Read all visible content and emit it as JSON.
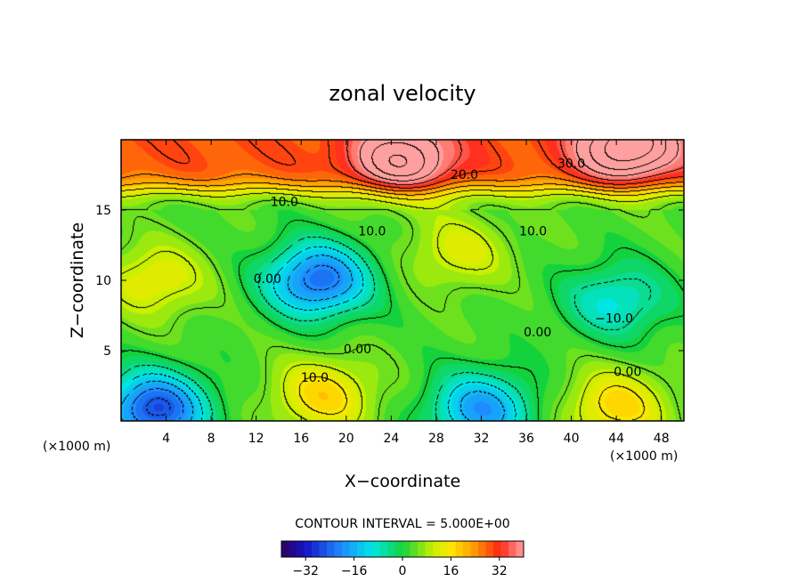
{
  "chart_data": {
    "type": "heatmap",
    "subtype": "filled-contour",
    "title": "zonal velocity",
    "xlabel": "X−coordinate",
    "ylabel": "Z−coordinate",
    "x_units_left": "(×1000 m)",
    "x_units_right": "(×1000 m)",
    "xlim": [
      0,
      50
    ],
    "ylim": [
      0,
      20
    ],
    "x_ticks": [
      4,
      8,
      12,
      16,
      20,
      24,
      28,
      32,
      36,
      40,
      44,
      48
    ],
    "y_ticks": [
      5,
      10,
      15
    ],
    "contour_interval_text": "CONTOUR INTERVAL = 5.000E+00",
    "contour_labels": [
      {
        "text": "30.0",
        "x": 40,
        "z": 18.0
      },
      {
        "text": "20.0",
        "x": 30.5,
        "z": 17.2
      },
      {
        "text": "10.0",
        "x": 14.5,
        "z": 15.3
      },
      {
        "text": "10.0",
        "x": 22.3,
        "z": 13.2
      },
      {
        "text": "10.0",
        "x": 36.6,
        "z": 13.2
      },
      {
        "text": "0.00",
        "x": 13,
        "z": 9.8
      },
      {
        "text": "0.00",
        "x": 37,
        "z": 6.0
      },
      {
        "text": "0.00",
        "x": 21,
        "z": 4.8
      },
      {
        "text": "−10.0",
        "x": 43.8,
        "z": 7.0
      },
      {
        "text": "10.0",
        "x": 17.2,
        "z": 2.8
      },
      {
        "text": "0.00",
        "x": 45,
        "z": 3.2
      }
    ],
    "colorbar": {
      "range": [
        -40,
        40
      ],
      "tick_values": [
        -32,
        -16,
        0,
        16,
        32
      ],
      "tick_labels": [
        "−32",
        "−16",
        "0",
        "16",
        "32"
      ]
    },
    "field_features": [
      {
        "x": 17.5,
        "z": 10,
        "value": -28
      },
      {
        "x": 30,
        "z": 12,
        "value": 14
      },
      {
        "x": 3,
        "z": 10,
        "value": 16
      },
      {
        "x": 18,
        "z": 1.8,
        "value": 20
      },
      {
        "x": 3,
        "z": 0.8,
        "value": -32
      },
      {
        "x": 32,
        "z": 0.8,
        "value": -22
      },
      {
        "x": 44,
        "z": 8.5,
        "value": -12
      },
      {
        "x": 44,
        "z": 1,
        "value": 20
      },
      {
        "x": 25,
        "z": 18.5,
        "value": 28
      },
      {
        "x": 45,
        "z": 19.5,
        "value": 34
      }
    ]
  }
}
